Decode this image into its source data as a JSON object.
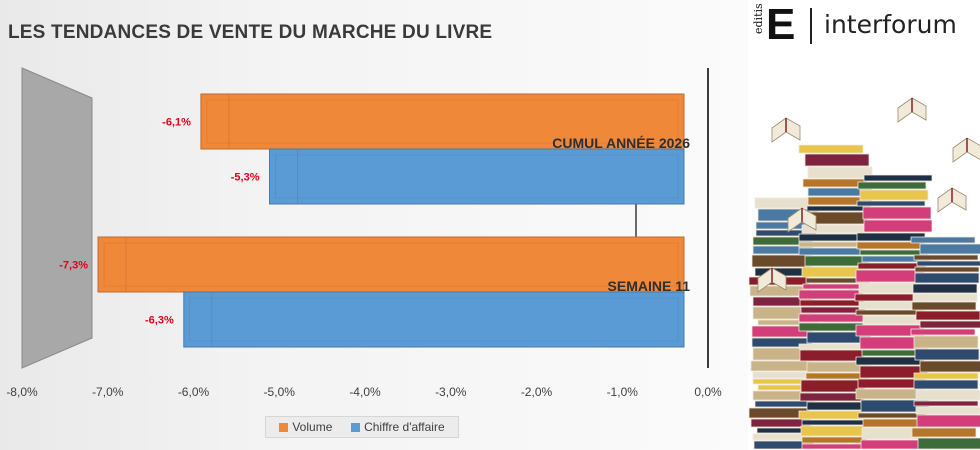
{
  "chart_data": {
    "type": "bar",
    "orientation": "horizontal",
    "title": "LES TENDANCES DE VENTE DU MARCHE DU LIVRE",
    "categories": [
      "CUMUL ANNÉE 2026",
      "SEMAINE 11"
    ],
    "series": [
      {
        "name": "Volume",
        "values": [
          -6.1,
          -7.3
        ],
        "labels": [
          "-6,1%",
          "-7,3%"
        ],
        "color": "#f0883a"
      },
      {
        "name": "Chiffre d'affaire",
        "values": [
          -5.3,
          -6.3
        ],
        "labels": [
          "-5,3%",
          "-6,3%"
        ],
        "color": "#5b9bd5"
      }
    ],
    "xlim": [
      -8,
      0
    ],
    "xticks": [
      {
        "value": -8,
        "label": "-8,0%"
      },
      {
        "value": -7,
        "label": "-7,0%"
      },
      {
        "value": -6,
        "label": "-6,0%"
      },
      {
        "value": -5,
        "label": "-5,0%"
      },
      {
        "value": -4,
        "label": "-4,0%"
      },
      {
        "value": -3,
        "label": "-3,0%"
      },
      {
        "value": -2,
        "label": "-2,0%"
      },
      {
        "value": -1,
        "label": "-1,0%"
      },
      {
        "value": 0,
        "label": "0,0%"
      }
    ],
    "legend_position": "bottom",
    "label_color": "#e0001b"
  },
  "brand": {
    "group": "editis",
    "letter": "E",
    "name": "interforum"
  }
}
